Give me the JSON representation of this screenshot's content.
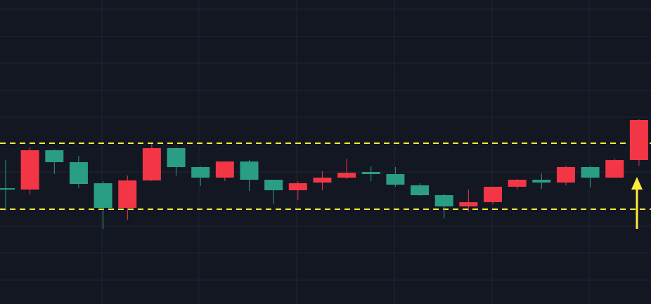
{
  "chart_data": {
    "type": "candlestick",
    "ylim": [
      0,
      433
    ],
    "up_color": "#2a9d85",
    "down_color": "#f23645",
    "open": [
      163,
      219,
      202,
      171,
      137,
      176,
      222,
      195,
      180,
      203,
      177,
      162,
      172,
      180,
      187,
      185,
      170,
      155,
      139,
      145,
      167,
      177,
      173,
      195,
      180,
      205,
      262
    ],
    "high": [
      205,
      223,
      220,
      211,
      175,
      183,
      228,
      223,
      196,
      203,
      205,
      177,
      175,
      189,
      207,
      196,
      195,
      172,
      157,
      163,
      167,
      178,
      186,
      197,
      197,
      207,
      263
    ],
    "low": [
      133,
      156,
      185,
      165,
      107,
      120,
      175,
      183,
      168,
      175,
      161,
      143,
      148,
      162,
      178,
      175,
      167,
      154,
      122,
      132,
      142,
      163,
      164,
      169,
      166,
      180,
      197
    ],
    "close": [
      165,
      163,
      219,
      202,
      172,
      137,
      176,
      222,
      195,
      180,
      203,
      177,
      162,
      173,
      180,
      188,
      185,
      169,
      155,
      139,
      145,
      167,
      177,
      173,
      195,
      180,
      205
    ],
    "levels": [
      {
        "value": 229,
        "color": "#ffeb3b"
      },
      {
        "value": 135,
        "color": "#ffeb3b"
      }
    ]
  }
}
